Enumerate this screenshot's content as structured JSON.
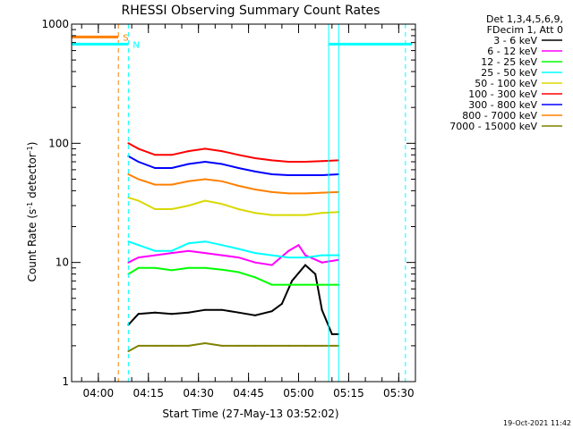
{
  "chart_data": {
    "type": "line",
    "title": "RHESSI Observing Summary Count Rates",
    "xlabel": "Start Time (27-May-13 03:52:02)",
    "ylabel_main": "Count Rate (s",
    "ylabel_sup1": "-1",
    "ylabel_mid": " detector",
    "ylabel_sup2": "-1",
    "ylabel_end": ")",
    "x_range_min": [
      0,
      103
    ],
    "y_log": true,
    "ylim": [
      1,
      1000
    ],
    "x_ticks": [
      {
        "m": 8,
        "label": "04:00"
      },
      {
        "m": 23,
        "label": "04:15"
      },
      {
        "m": 38,
        "label": "04:30"
      },
      {
        "m": 53,
        "label": "04:45"
      },
      {
        "m": 68,
        "label": "05:00"
      },
      {
        "m": 83,
        "label": "05:15"
      },
      {
        "m": 98,
        "label": "05:30"
      }
    ],
    "y_ticks": [
      {
        "v": 1,
        "label": "1"
      },
      {
        "v": 10,
        "label": "10"
      },
      {
        "v": 100,
        "label": "100"
      },
      {
        "v": 1000,
        "label": "1000"
      }
    ],
    "legend_header": [
      "Det 1,3,4,5,6,9,",
      "FDecim 1, Att 0"
    ],
    "series": [
      {
        "name": "3 - 6 keV",
        "color": "#000000",
        "x": [
          17,
          20,
          25,
          30,
          35,
          40,
          45,
          50,
          55,
          60,
          63,
          66,
          70,
          73,
          75,
          78,
          80
        ],
        "y": [
          3.0,
          3.7,
          3.8,
          3.7,
          3.8,
          4.0,
          4.0,
          3.8,
          3.6,
          3.9,
          4.5,
          7.0,
          9.5,
          8.0,
          4.0,
          2.5,
          2.5
        ]
      },
      {
        "name": "6 - 12 keV",
        "color": "#ff00ff",
        "x": [
          17,
          20,
          25,
          30,
          35,
          40,
          45,
          50,
          55,
          60,
          65,
          68,
          70,
          75,
          80
        ],
        "y": [
          10.0,
          11.0,
          11.5,
          12.0,
          12.5,
          12.0,
          11.5,
          11.0,
          10.0,
          9.5,
          12.5,
          14.0,
          11.5,
          10.0,
          10.5
        ]
      },
      {
        "name": "12 - 25 keV",
        "color": "#00ff00",
        "x": [
          17,
          20,
          25,
          30,
          35,
          40,
          45,
          50,
          55,
          60,
          65,
          70,
          75,
          80
        ],
        "y": [
          8.0,
          9.0,
          9.0,
          8.6,
          9.0,
          9.0,
          8.7,
          8.3,
          7.5,
          6.5,
          6.5,
          6.5,
          6.5,
          6.5
        ]
      },
      {
        "name": "25 - 50 keV",
        "color": "#00ffff",
        "x": [
          17,
          20,
          25,
          30,
          35,
          40,
          45,
          50,
          55,
          60,
          65,
          70,
          75,
          80
        ],
        "y": [
          15.0,
          14.0,
          12.5,
          12.5,
          14.5,
          15.0,
          14.0,
          13.0,
          12.0,
          11.5,
          11.0,
          11.0,
          11.5,
          11.5
        ]
      },
      {
        "name": "50 - 100 keV",
        "color": "#d8d800",
        "x": [
          17,
          20,
          25,
          30,
          35,
          40,
          45,
          50,
          55,
          60,
          65,
          70,
          75,
          80
        ],
        "y": [
          35.0,
          33.0,
          28.0,
          28.0,
          30.0,
          33.0,
          31.0,
          28.0,
          26.0,
          25.0,
          25.0,
          25.0,
          26.0,
          26.5
        ]
      },
      {
        "name": "100 - 300 keV",
        "color": "#ff0000",
        "x": [
          17,
          20,
          25,
          30,
          35,
          40,
          45,
          50,
          55,
          60,
          65,
          70,
          75,
          80
        ],
        "y": [
          100.0,
          90.0,
          80.0,
          80.0,
          86.0,
          90.0,
          86.0,
          80.0,
          75.0,
          72.0,
          70.0,
          70.0,
          71.0,
          72.0
        ]
      },
      {
        "name": "300 - 800 keV",
        "color": "#0000ff",
        "x": [
          17,
          20,
          25,
          30,
          35,
          40,
          45,
          50,
          55,
          60,
          65,
          70,
          75,
          80
        ],
        "y": [
          78.0,
          70.0,
          62.0,
          62.0,
          67.0,
          70.0,
          67.0,
          62.0,
          58.0,
          55.0,
          54.0,
          54.0,
          54.0,
          55.0
        ]
      },
      {
        "name": "800 - 7000 keV",
        "color": "#ff8000",
        "x": [
          17,
          20,
          25,
          30,
          35,
          40,
          45,
          50,
          55,
          60,
          65,
          70,
          75,
          80
        ],
        "y": [
          55.0,
          50.0,
          45.0,
          45.0,
          48.0,
          50.0,
          48.0,
          44.0,
          41.0,
          39.0,
          38.0,
          38.0,
          38.5,
          39.0
        ]
      },
      {
        "name": "7000 - 15000 keV",
        "color": "#808000",
        "x": [
          17,
          20,
          25,
          30,
          35,
          40,
          45,
          50,
          55,
          60,
          65,
          70,
          75,
          80
        ],
        "y": [
          1.8,
          2.0,
          2.0,
          2.0,
          2.0,
          2.1,
          2.0,
          2.0,
          2.0,
          2.0,
          2.0,
          2.0,
          2.0,
          2.0
        ]
      }
    ],
    "flags": [
      {
        "label": "S",
        "color": "#ff8000",
        "x_start": 0,
        "x_end": 14,
        "level": 780
      },
      {
        "label": "N",
        "color": "#00ffff",
        "x_start": 0,
        "x_end": 17,
        "level": 680
      },
      {
        "label": "",
        "color": "#00ffff",
        "x_start": 77,
        "x_end": 102,
        "level": 680
      }
    ],
    "vlines": [
      {
        "x": 0,
        "color": "#00ffff",
        "style": "solid"
      },
      {
        "x": 14,
        "color": "#ff8000",
        "style": "dashed"
      },
      {
        "x": 17,
        "color": "#00ffff",
        "style": "dashed"
      },
      {
        "x": 77,
        "color": "#00ffff",
        "style": "solid"
      },
      {
        "x": 80,
        "color": "#00ffff",
        "style": "solid"
      },
      {
        "x": 100,
        "color": "#00ffff",
        "style": "dashed"
      }
    ]
  },
  "footer": {
    "timestamp": "19-Oct-2021 11:42"
  }
}
